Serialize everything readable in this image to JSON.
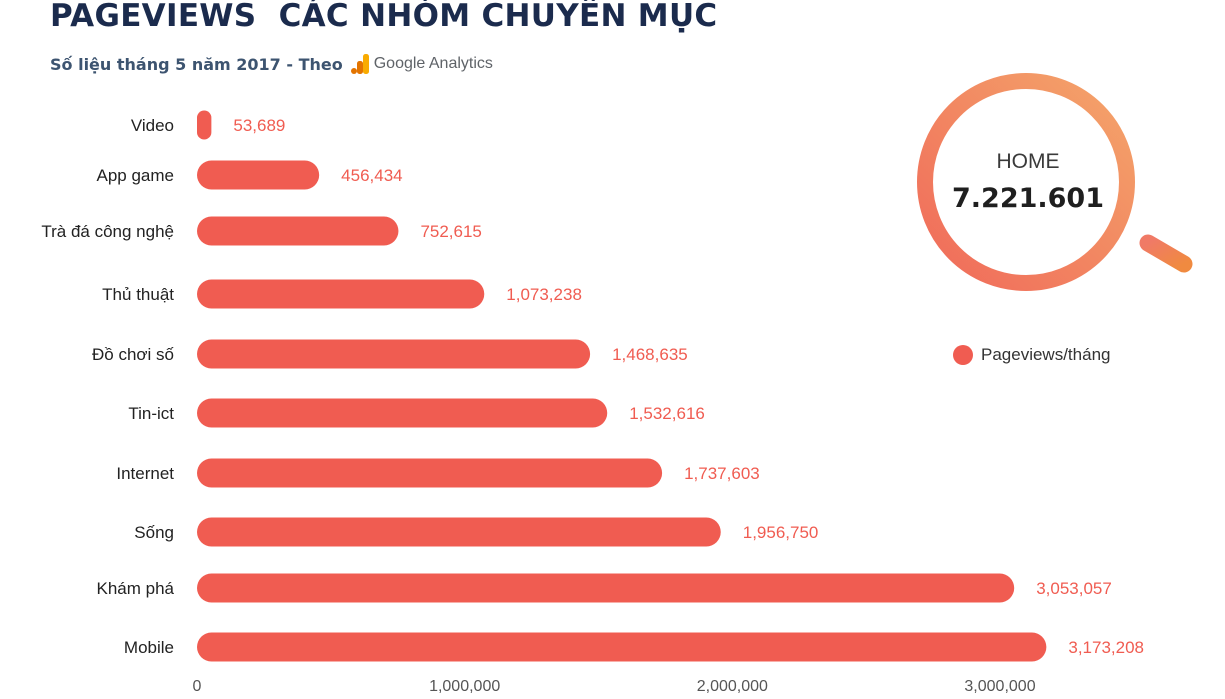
{
  "title": "PAGEVIEWS  CÁC NHÓM CHUYÊN MỤC",
  "subtitle": "Số liệu tháng 5 năm 2017 - Theo",
  "source_brand": "Google Analytics",
  "home": {
    "label": "HOME",
    "value": "7.221.601"
  },
  "legend": {
    "label": "Pageviews/tháng",
    "position": "right"
  },
  "colors": {
    "bar": "#f05c51",
    "value_label": "#f05c51",
    "title": "#1b2b4d",
    "ring_start": "#f06a5a",
    "ring_end": "#f4a56a"
  },
  "chart_data": {
    "type": "bar",
    "orientation": "horizontal",
    "categories": [
      "Video",
      "App game",
      "Trà đá công nghệ",
      "Thủ thuật",
      "Đồ chơi số",
      "Tin-ict",
      "Internet",
      "Sống",
      "Khám phá",
      "Mobile"
    ],
    "values": [
      53689,
      456434,
      752615,
      1073238,
      1468635,
      1532616,
      1737603,
      1956750,
      3053057,
      3173208
    ],
    "value_labels": [
      "53,689",
      "456,434",
      "752,615",
      "1,073,238",
      "1,468,635",
      "1,532,616",
      "1,737,603",
      "1,956,750",
      "3,053,057",
      "3,173,208"
    ],
    "series": [
      {
        "name": "Pageviews/tháng"
      }
    ],
    "xlim": [
      0,
      3400000
    ],
    "xticks": [
      0,
      1000000,
      2000000,
      3000000
    ],
    "xtick_labels": [
      "0",
      "1,000,000",
      "2,000,000",
      "3,000,000"
    ],
    "grid": false
  }
}
